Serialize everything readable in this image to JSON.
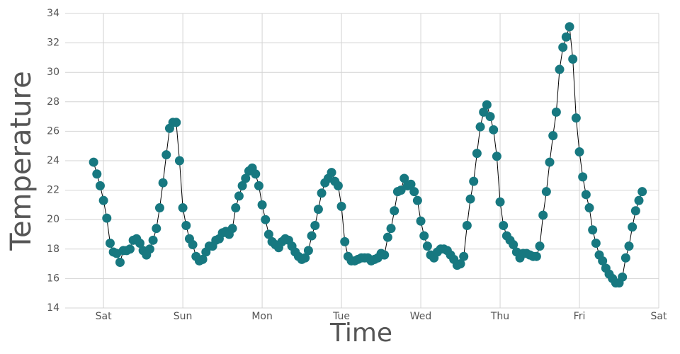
{
  "chart_data": {
    "type": "line",
    "x_label": "Time",
    "y_label": "Temperature",
    "x": [
      -3,
      -2,
      -1,
      0,
      1,
      2,
      3,
      4,
      5,
      6,
      7,
      8,
      9,
      10,
      11,
      12,
      13,
      14,
      15,
      16,
      17,
      18,
      19,
      20,
      21,
      22,
      23,
      24,
      25,
      26,
      27,
      28,
      29,
      30,
      31,
      32,
      33,
      34,
      35,
      36,
      37,
      38,
      39,
      40,
      41,
      42,
      43,
      44,
      45,
      46,
      47,
      48,
      49,
      50,
      51,
      52,
      53,
      54,
      55,
      56,
      57,
      58,
      59,
      60,
      61,
      62,
      63,
      64,
      65,
      66,
      67,
      68,
      69,
      70,
      71,
      72,
      73,
      74,
      75,
      76,
      77,
      78,
      79,
      80,
      81,
      82,
      83,
      84,
      85,
      86,
      87,
      88,
      89,
      90,
      91,
      92,
      93,
      94,
      95,
      96,
      97,
      98,
      99,
      100,
      101,
      102,
      103,
      104,
      105,
      106,
      107,
      108,
      109,
      110,
      111,
      112,
      113,
      114,
      115,
      116,
      117,
      118,
      119,
      120,
      121,
      122,
      123,
      124,
      125,
      126,
      127,
      128,
      129,
      130,
      131,
      132,
      133,
      134,
      135,
      136,
      137,
      138,
      139,
      140,
      141,
      142,
      143,
      144,
      145,
      146,
      147,
      148,
      149,
      150,
      151,
      152,
      153,
      154,
      155,
      156,
      157,
      158,
      159,
      160,
      161,
      162,
      163
    ],
    "values": [
      23.9,
      23.1,
      22.3,
      21.3,
      20.1,
      18.4,
      17.8,
      17.7,
      17.1,
      17.9,
      17.9,
      18.0,
      18.6,
      18.7,
      18.4,
      17.9,
      17.6,
      18.0,
      18.6,
      19.4,
      20.8,
      22.5,
      24.4,
      26.2,
      26.6,
      26.6,
      24.0,
      20.8,
      19.6,
      18.7,
      18.3,
      17.5,
      17.2,
      17.3,
      17.8,
      18.2,
      18.2,
      18.6,
      18.7,
      19.1,
      19.2,
      19.0,
      19.4,
      20.8,
      21.6,
      22.3,
      22.8,
      23.3,
      23.5,
      23.1,
      22.3,
      21.0,
      20.0,
      19.0,
      18.5,
      18.3,
      18.1,
      18.5,
      18.7,
      18.6,
      18.2,
      17.8,
      17.5,
      17.3,
      17.4,
      17.9,
      18.9,
      19.6,
      20.7,
      21.8,
      22.5,
      22.8,
      23.2,
      22.6,
      22.3,
      20.9,
      18.5,
      17.5,
      17.2,
      17.2,
      17.3,
      17.4,
      17.4,
      17.4,
      17.2,
      17.3,
      17.4,
      17.7,
      17.6,
      18.8,
      19.4,
      20.6,
      21.9,
      22.0,
      22.8,
      22.3,
      22.4,
      21.9,
      21.3,
      19.9,
      18.9,
      18.2,
      17.6,
      17.4,
      17.8,
      18.0,
      18.0,
      17.9,
      17.6,
      17.3,
      16.9,
      17.0,
      17.5,
      19.6,
      21.4,
      22.6,
      24.5,
      26.3,
      27.3,
      27.8,
      27.0,
      26.1,
      24.3,
      21.2,
      19.6,
      18.9,
      18.6,
      18.3,
      17.8,
      17.4,
      17.7,
      17.7,
      17.6,
      17.5,
      17.5,
      18.2,
      20.3,
      21.9,
      23.9,
      25.7,
      27.3,
      30.2,
      31.7,
      32.4,
      33.1,
      30.9,
      26.9,
      24.6,
      22.9,
      21.7,
      20.8,
      19.3,
      18.4,
      17.6,
      17.2,
      16.7,
      16.3,
      16.0,
      15.7,
      15.7,
      16.1,
      17.4,
      18.2,
      19.5,
      20.6,
      21.3,
      21.9
    ],
    "color": "#177880",
    "line_color": "#000000",
    "xlim": [
      -11.6,
      168
    ],
    "xticks": [
      {
        "value": 0,
        "label": "Sat"
      },
      {
        "value": 24,
        "label": "Sun"
      },
      {
        "value": 48,
        "label": "Mon"
      },
      {
        "value": 72,
        "label": "Tue"
      },
      {
        "value": 96,
        "label": "Wed"
      },
      {
        "value": 120,
        "label": "Thu"
      },
      {
        "value": 144,
        "label": "Fri"
      },
      {
        "value": 168,
        "label": "Sat"
      }
    ],
    "ylim": [
      14,
      34
    ],
    "yticks": [
      14,
      16,
      18,
      20,
      22,
      24,
      26,
      28,
      30,
      32,
      34
    ],
    "grid": true
  }
}
